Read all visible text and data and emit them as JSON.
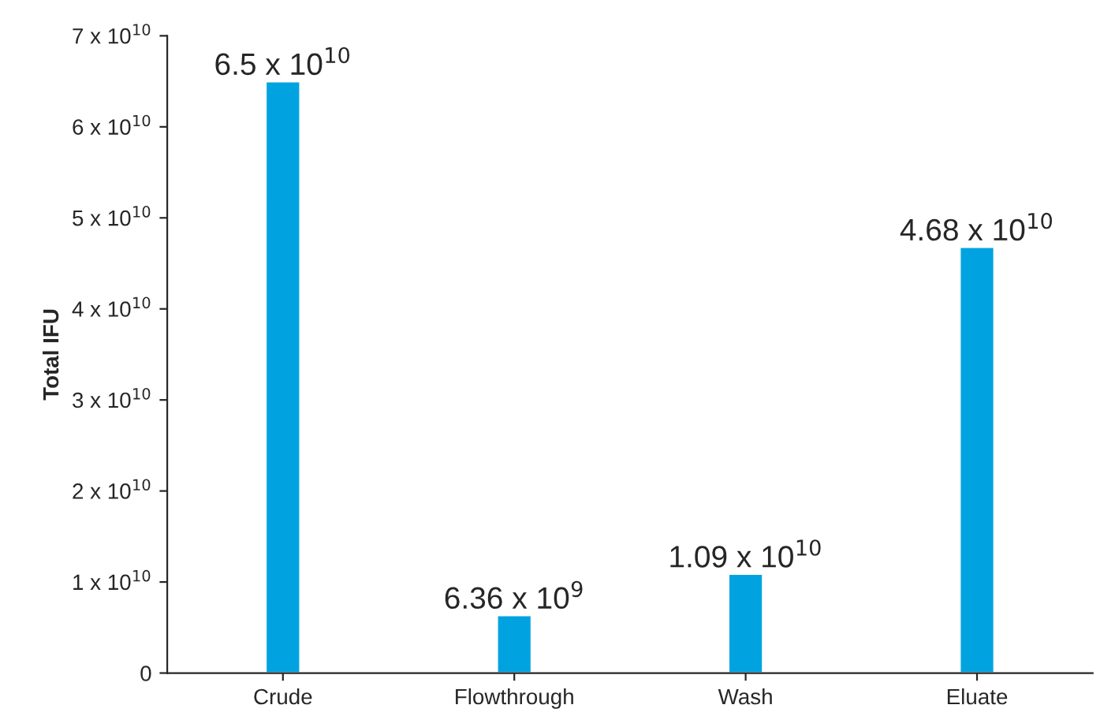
{
  "chart_data": {
    "type": "bar",
    "ylabel": "Total IFU",
    "categories": [
      "Crude",
      "Flowthrough",
      "Wash",
      "Eluate"
    ],
    "values": [
      65000000000,
      6360000000,
      10900000000,
      46800000000
    ],
    "value_labels": [
      "6.5 x 10$^{10}$",
      "6.36 x 10$^{9}$",
      "1.09 x 10$^{10}$",
      "4.68 x 10$^{10}$"
    ],
    "color": "#00a3e0",
    "ylim": [
      0,
      70000000000
    ],
    "yticks": [
      0,
      {
        "value": 10000000000,
        "label": "1 x 10$^{10}$"
      },
      {
        "value": 20000000000,
        "label": "2 x 10$^{10}$"
      },
      {
        "value": 30000000000,
        "label": "3 x 10$^{10}$"
      },
      {
        "value": 40000000000,
        "label": "4 x 10$^{10}$"
      },
      {
        "value": 50000000000,
        "label": "5 x 10$^{10}$"
      },
      {
        "value": 60000000000,
        "label": "6 x 10$^{10}$"
      },
      {
        "value": 70000000000,
        "label": "7 x 10$^{10}$"
      }
    ],
    "grid": false,
    "legend": false
  }
}
